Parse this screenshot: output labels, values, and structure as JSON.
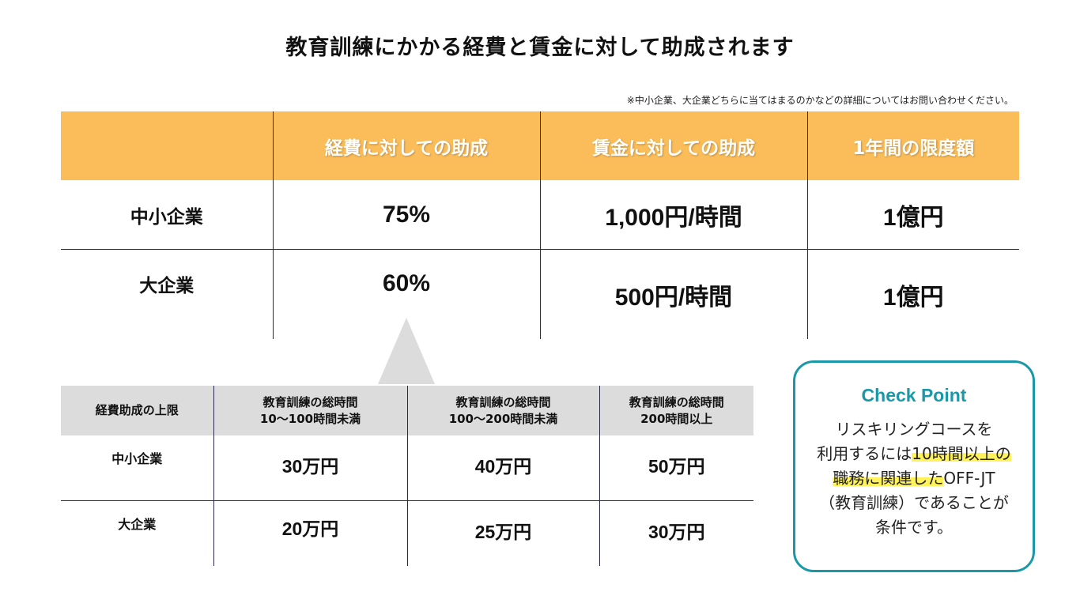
{
  "title": "教育訓練にかかる経費と賃金に対して助成されます",
  "note": "※中小企業、大企業どちらに当てはまるのかなどの詳細についてはお問い合わせください。",
  "main_table": {
    "headers": [
      "",
      "経費に対しての助成",
      "賃金に対しての助成",
      "1年間の限度額"
    ],
    "rows": [
      {
        "label": "中小企業",
        "expense": "75%",
        "wage": "1,000円/時間",
        "limit": "1億円"
      },
      {
        "label": "大企業",
        "expense": "60%",
        "wage": "500円/時間",
        "limit": "1億円"
      }
    ]
  },
  "sub_table": {
    "header_label": "経費助成の上限",
    "columns": [
      {
        "line1": "教育訓練の総時間",
        "line2": "10〜100時間未満"
      },
      {
        "line1": "教育訓練の総時間",
        "line2": "100〜200時間未満"
      },
      {
        "line1": "教育訓練の総時間",
        "line2": "200時間以上"
      }
    ],
    "rows": [
      {
        "label": "中小企業",
        "values": [
          "30万円",
          "40万円",
          "50万円"
        ]
      },
      {
        "label": "大企業",
        "values": [
          "20万円",
          "25万円",
          "30万円"
        ]
      }
    ]
  },
  "checkpoint": {
    "title": "Check Point",
    "line1": "リスキリングコースを",
    "line2_plain": "利用するには",
    "line2_highlight": "10時間以上の",
    "line3_highlight": "職務に関連した",
    "line3_plain": "OFF-JT",
    "line4": "（教育訓練）であることが",
    "line5": "条件です。",
    "highlight_color": "#fff25a",
    "border_color": "#1b98a8"
  },
  "colors": {
    "header_orange": "#fbbd59",
    "sub_header_gray": "#dcdcdc"
  }
}
